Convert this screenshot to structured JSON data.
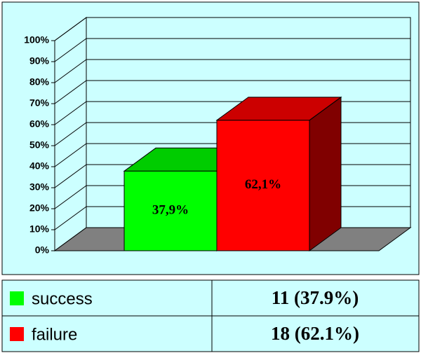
{
  "chart_data": {
    "type": "bar3d",
    "categories": [
      "success",
      "failure"
    ],
    "values": [
      37.9,
      62.1
    ],
    "value_labels": [
      "37,9%",
      "62,1%"
    ],
    "colors": [
      "#00ff00",
      "#ff0000"
    ],
    "ylim": [
      0,
      100
    ],
    "yticks": [
      {
        "value": 0,
        "label": "0%"
      },
      {
        "value": 10,
        "label": "10%"
      },
      {
        "value": 20,
        "label": "20%"
      },
      {
        "value": 30,
        "label": "30%"
      },
      {
        "value": 40,
        "label": "40%"
      },
      {
        "value": 50,
        "label": "50%"
      },
      {
        "value": 60,
        "label": "60%"
      },
      {
        "value": 70,
        "label": "70%"
      },
      {
        "value": 80,
        "label": "80%"
      },
      {
        "value": 90,
        "label": "90%"
      },
      {
        "value": 100,
        "label": "100%"
      }
    ],
    "grid": true
  },
  "summary": [
    "11 (37.9%)",
    "18 (62.1%)"
  ]
}
